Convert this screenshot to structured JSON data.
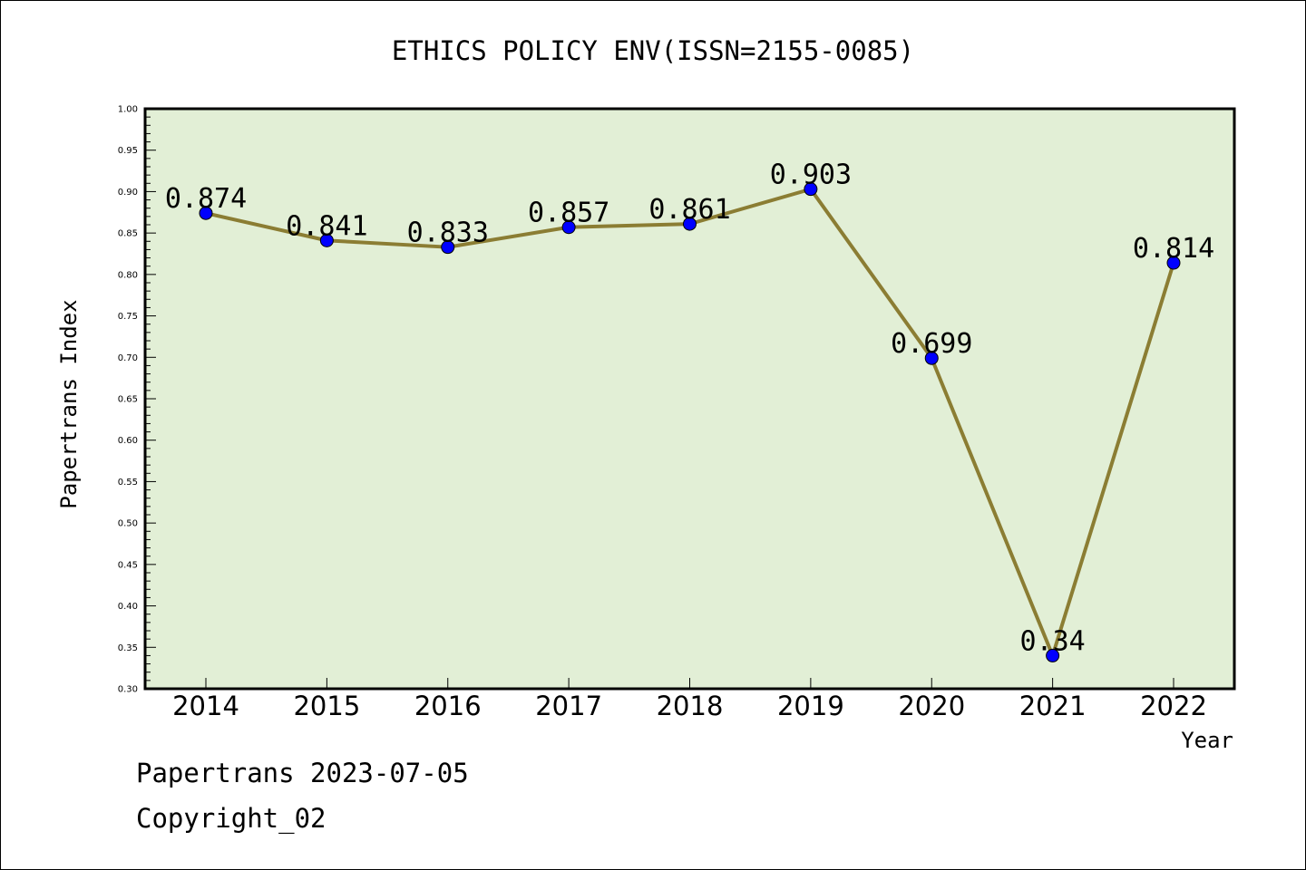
{
  "chart_data": {
    "type": "line",
    "title": "ETHICS POLICY ENV(ISSN=2155-0085)",
    "xlabel": "Year",
    "ylabel": "Papertrans Index",
    "categories": [
      "2014",
      "2015",
      "2016",
      "2017",
      "2018",
      "2019",
      "2020",
      "2021",
      "2022"
    ],
    "series": [
      {
        "values": [
          0.874,
          0.841,
          0.833,
          0.857,
          0.861,
          0.903,
          0.699,
          0.34,
          0.814
        ],
        "labels": [
          "0.874",
          "0.841",
          "0.833",
          "0.857",
          "0.861",
          "0.903",
          "0.699",
          "0.34",
          "0.814"
        ]
      }
    ],
    "ylim": [
      0.3,
      1.0
    ],
    "yticks": [
      "0.30",
      "0.35",
      "0.40",
      "0.45",
      "0.50",
      "0.55",
      "0.60",
      "0.65",
      "0.70",
      "0.75",
      "0.80",
      "0.85",
      "0.90",
      "0.95",
      "1.00"
    ],
    "grid": false,
    "colors": {
      "plot_background": "#e2efd6",
      "line": "#8b7d33",
      "marker": "#0000ff"
    }
  },
  "footer": {
    "line1": "Papertrans 2023-07-05",
    "line2": "Copyright_02"
  }
}
